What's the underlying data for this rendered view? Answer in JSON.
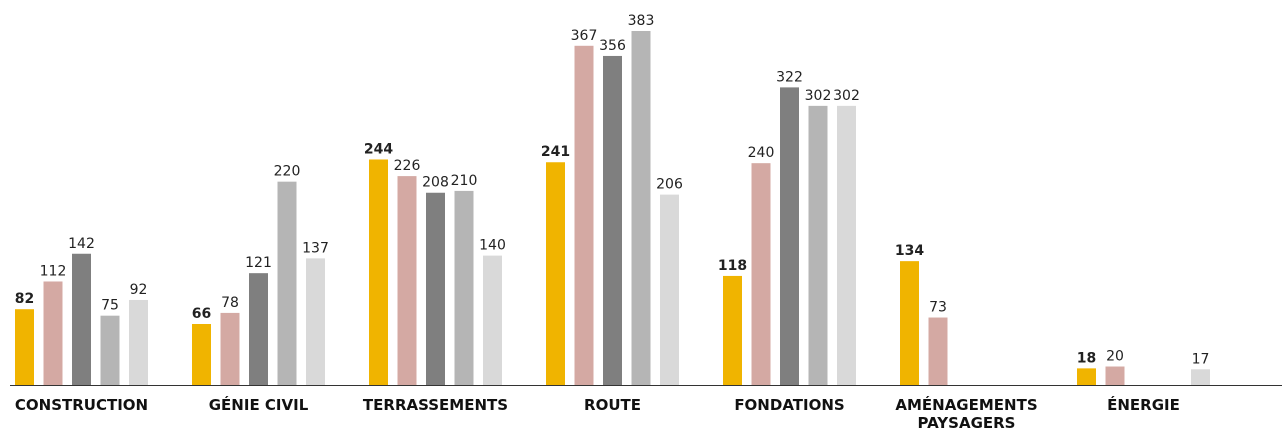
{
  "chart_data": {
    "type": "bar",
    "categories": [
      "CONSTRUCTION",
      "GÉNIE CIVIL",
      "TERRASSEMENTS",
      "ROUTE",
      "FONDATIONS",
      "AMÉNAGEMENTS PAYSAGERS",
      "ÉNERGIE"
    ],
    "category_lines": [
      [
        "CONSTRUCTION"
      ],
      [
        "GÉNIE CIVIL"
      ],
      [
        "TERRASSEMENTS"
      ],
      [
        "ROUTE"
      ],
      [
        "FONDATIONS"
      ],
      [
        "AMÉNAGEMENTS",
        "PAYSAGERS"
      ],
      [
        "ÉNERGIE"
      ]
    ],
    "series": [
      {
        "color": "#F0B400",
        "bold_labels": true,
        "values": [
          82,
          66,
          244,
          241,
          118,
          134,
          18
        ]
      },
      {
        "color": "#D4A9A3",
        "bold_labels": false,
        "values": [
          112,
          78,
          226,
          367,
          240,
          73,
          20
        ]
      },
      {
        "color": "#7F7F7F",
        "bold_labels": false,
        "values": [
          142,
          121,
          208,
          356,
          322,
          null,
          null
        ]
      },
      {
        "color": "#B5B5B5",
        "bold_labels": false,
        "values": [
          75,
          220,
          210,
          383,
          302,
          null,
          null
        ]
      },
      {
        "color": "#D9D9D9",
        "bold_labels": false,
        "values": [
          92,
          137,
          140,
          206,
          302,
          null,
          17
        ]
      }
    ],
    "ylim": [
      0,
      383
    ],
    "grid": false,
    "legend": "none",
    "baseline_color": "#333333"
  }
}
